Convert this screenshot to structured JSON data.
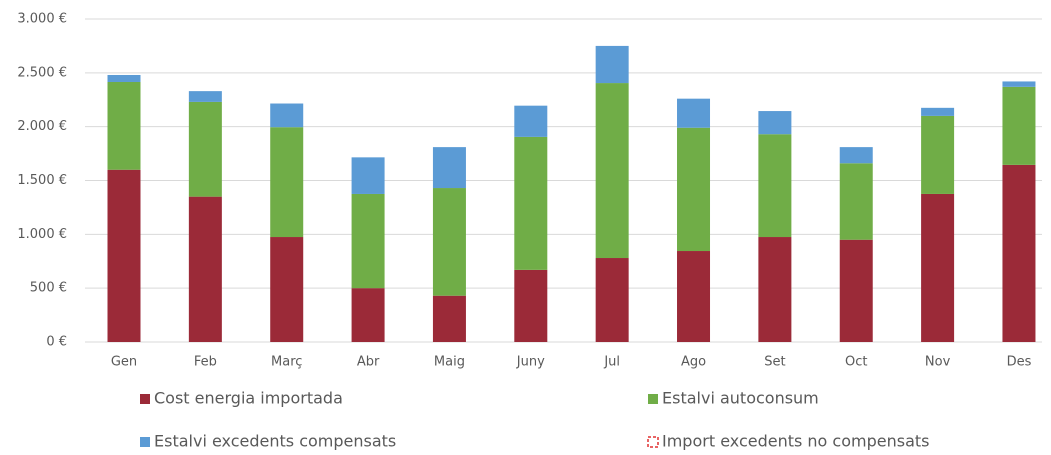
{
  "chart_data": {
    "type": "stacked_bar",
    "categories": [
      "Gen",
      "Feb",
      "Març",
      "Abr",
      "Maig",
      "Juny",
      "Jul",
      "Ago",
      "Set",
      "Oct",
      "Nov",
      "Des"
    ],
    "series": [
      {
        "name": "Cost energia importada",
        "color": "#9b2a38",
        "values": [
          1600,
          1350,
          975,
          500,
          430,
          670,
          780,
          845,
          975,
          950,
          1375,
          1645
        ]
      },
      {
        "name": "Estalvi autoconsum",
        "color": "#70ad47",
        "values": [
          815,
          880,
          1020,
          875,
          1000,
          1235,
          1625,
          1145,
          955,
          710,
          725,
          725
        ]
      },
      {
        "name": "Estalvi excedents compensats",
        "color": "#5b9bd5",
        "values": [
          65,
          100,
          220,
          340,
          380,
          290,
          345,
          270,
          215,
          150,
          75,
          50
        ]
      },
      {
        "name": "Import excedents no compensats",
        "color": "#e03030",
        "dashed": true,
        "values": [
          0,
          0,
          0,
          0,
          0,
          0,
          0,
          0,
          0,
          0,
          0,
          0
        ]
      }
    ],
    "ylim": [
      0,
      3000
    ],
    "yticks": [
      {
        "value": 0,
        "label": "0 €"
      },
      {
        "value": 500,
        "label": "500 €"
      },
      {
        "value": 1000,
        "label": "1.000 €"
      },
      {
        "value": 1500,
        "label": "1.500 €"
      },
      {
        "value": 2000,
        "label": "2.000 €"
      },
      {
        "value": 2500,
        "label": "2.500 €"
      },
      {
        "value": 3000,
        "label": "3.000 €"
      }
    ],
    "grid": true
  }
}
